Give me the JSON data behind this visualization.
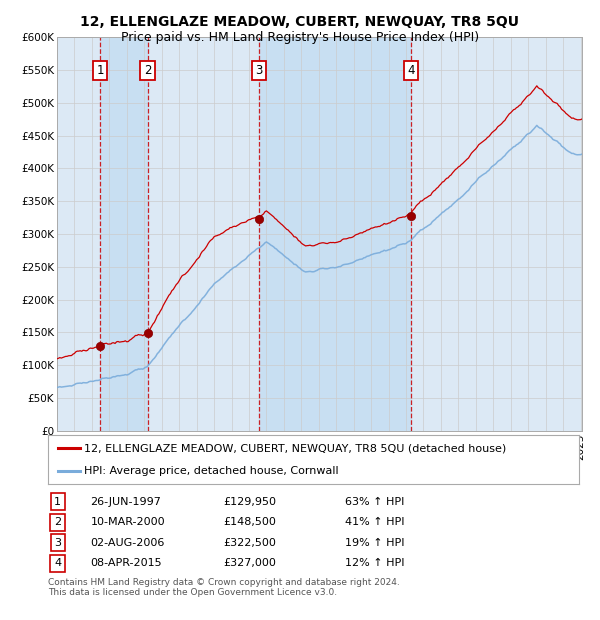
{
  "title": "12, ELLENGLAZE MEADOW, CUBERT, NEWQUAY, TR8 5QU",
  "subtitle": "Price paid vs. HM Land Registry's House Price Index (HPI)",
  "background_color": "#ffffff",
  "plot_bg_color": "#dce9f5",
  "grid_color": "#cccccc",
  "legend_label_red": "12, ELLENGLAZE MEADOW, CUBERT, NEWQUAY, TR8 5QU (detached house)",
  "legend_label_blue": "HPI: Average price, detached house, Cornwall",
  "footer": "Contains HM Land Registry data © Crown copyright and database right 2024.\nThis data is licensed under the Open Government Licence v3.0.",
  "sale_dates": [
    "1997-06-26",
    "2000-03-10",
    "2006-08-02",
    "2015-04-08"
  ],
  "sale_prices": [
    129950,
    148500,
    322500,
    327000
  ],
  "sale_labels": [
    "1",
    "2",
    "3",
    "4"
  ],
  "sale_pct_hpi": [
    "63% ↑ HPI",
    "41% ↑ HPI",
    "19% ↑ HPI",
    "12% ↑ HPI"
  ],
  "sale_dates_str": [
    "26-JUN-1997",
    "10-MAR-2000",
    "02-AUG-2006",
    "08-APR-2015"
  ],
  "sale_prices_str": [
    "£129,950",
    "£148,500",
    "£322,500",
    "£327,000"
  ],
  "ylim": [
    0,
    600000
  ],
  "yticks": [
    0,
    50000,
    100000,
    150000,
    200000,
    250000,
    300000,
    350000,
    400000,
    450000,
    500000,
    550000,
    600000
  ],
  "ytick_labels": [
    "£0",
    "£50K",
    "£100K",
    "£150K",
    "£200K",
    "£250K",
    "£300K",
    "£350K",
    "£400K",
    "£450K",
    "£500K",
    "£550K",
    "£600K"
  ],
  "red_color": "#cc0000",
  "blue_color": "#7aacdb",
  "dot_color": "#990000",
  "vline_color": "#cc0000",
  "shade_color": "#c8dff2",
  "title_fontsize": 10,
  "subtitle_fontsize": 9,
  "axis_fontsize": 7.5,
  "legend_fontsize": 8,
  "table_fontsize": 8,
  "footer_fontsize": 6.5
}
